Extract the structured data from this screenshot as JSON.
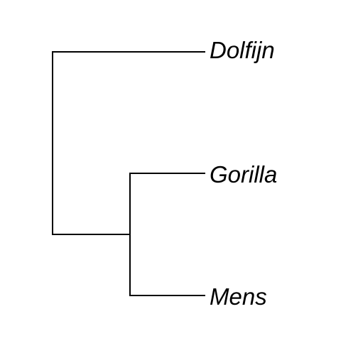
{
  "tree": {
    "taxa": [
      {
        "id": "dolfijn",
        "label": "Dolfijn"
      },
      {
        "id": "gorilla",
        "label": "Gorilla"
      },
      {
        "id": "mens",
        "label": "Mens"
      }
    ],
    "topology": "(Dolfijn,(Gorilla,Mens))",
    "label_style": "italic",
    "line_color": "#000000"
  }
}
